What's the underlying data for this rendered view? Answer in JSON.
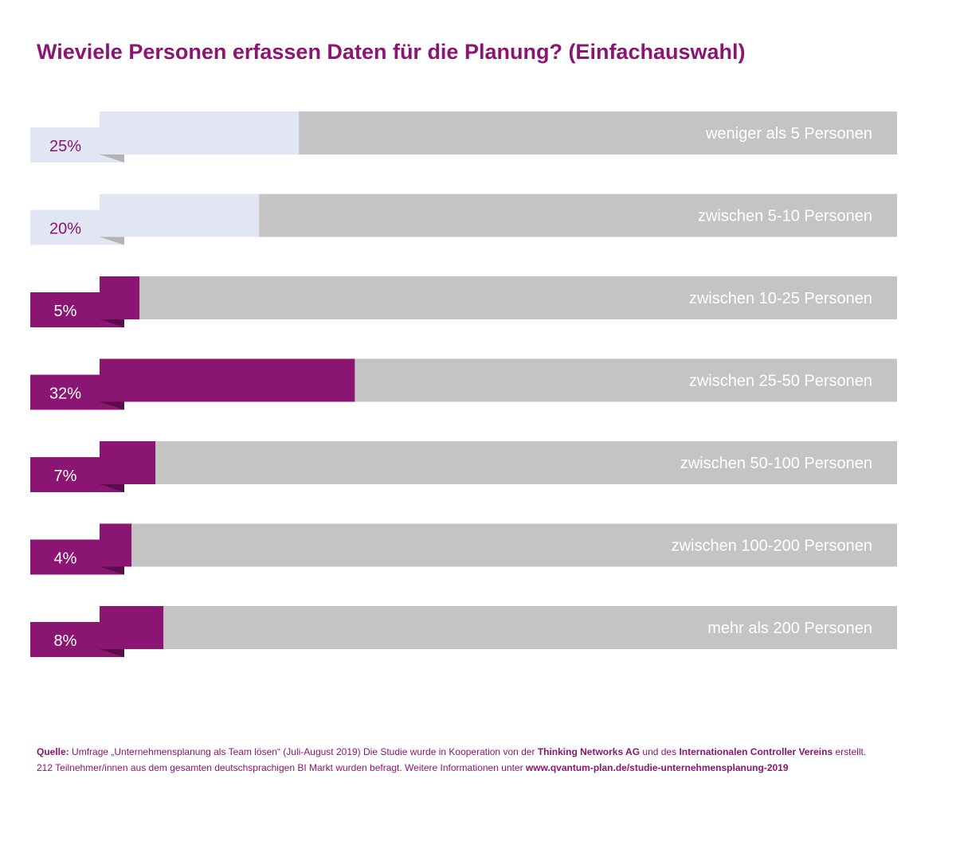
{
  "chart_data": {
    "type": "bar",
    "title": "Wieviele Personen erfassen Daten für die Planung? (Einfachauswahl)",
    "xlim": [
      0,
      100
    ],
    "categories": [
      "weniger als 5 Personen",
      "zwischen 5-10 Personen",
      "zwischen 10-25 Personen",
      "zwischen 25-50 Personen",
      "zwischen 50-100 Personen",
      "zwischen 100-200 Personen",
      "mehr als 200 Personen"
    ],
    "values": [
      25,
      20,
      5,
      32,
      7,
      4,
      8
    ],
    "value_labels": [
      "25%",
      "20%",
      "5%",
      "32%",
      "7%",
      "4%",
      "8%"
    ],
    "highlight": [
      false,
      false,
      true,
      true,
      true,
      true,
      true
    ],
    "grid": false,
    "legend": "none"
  },
  "colors": {
    "title": "#8b1573",
    "bar_highlight": "#8b1573",
    "bar_light": "#e2e5f3",
    "bar_background": "#c4c4c4",
    "fold_highlight": "#5a0c4b",
    "fold_light": "#b3b3b3",
    "label_on_dark": "#ffffff",
    "label_on_light": "#8b1573",
    "category_text": "#ffffff"
  },
  "footer": {
    "source_label": "Quelle:",
    "source_text": "Umfrage „Unternehmensplanung als Team lösen“ (Juli-August 2019)  Die Studie wurde in Kooperation von der",
    "partner_1": "Thinking Networks AG",
    "connector": "und des",
    "partner_2": "Internationalen Controller Vereins",
    "suffix": "erstellt.",
    "line2_text": "212 Teilnehmer/innen aus dem gesamten deutschsprachigen BI Markt wurden befragt. Weitere Informationen unter",
    "link": "www.qvantum-plan.de/studie-unternehmensplanung-2019"
  }
}
